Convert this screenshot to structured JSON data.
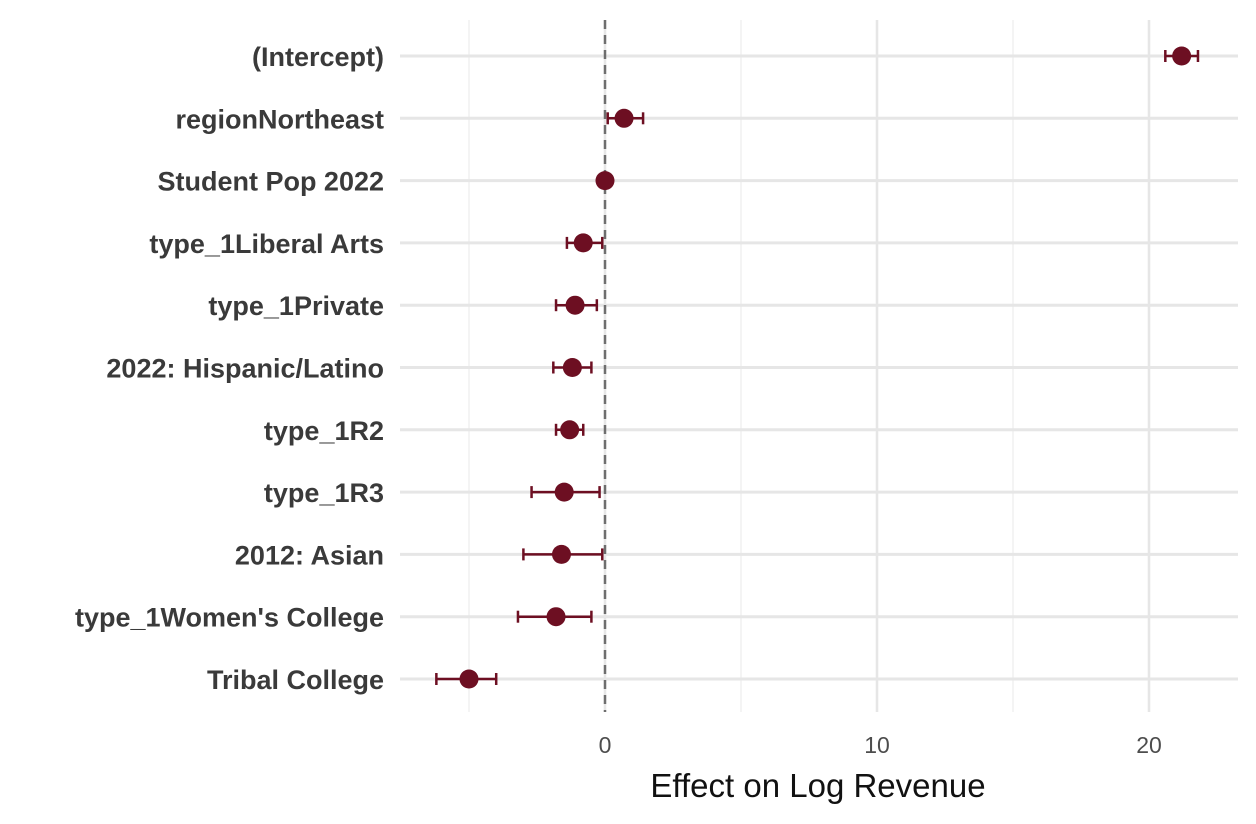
{
  "chart_data": {
    "type": "scatter",
    "subtype": "coefficient-plot",
    "title": "",
    "xlabel": "Effect on Log Revenue",
    "ylabel": "",
    "xlim": [
      -7.5,
      23.5
    ],
    "x_ticks": [
      0,
      10,
      20
    ],
    "reference_line": {
      "x": 0,
      "style": "dashed"
    },
    "grid": true,
    "legend": "none",
    "colors": {
      "point": "#6d0f22",
      "grid": "#e6e6e6",
      "reference": "#6e6e6e"
    },
    "categories": [
      "(Intercept)",
      "regionNortheast",
      "Student Pop 2022",
      "type_1Liberal Arts",
      "type_1Private",
      "2022: Hispanic/Latino",
      "type_1R2",
      "type_1R3",
      "2012: Asian",
      "type_1Women's College",
      "Tribal College"
    ],
    "series": [
      {
        "estimate": [
          21.2,
          0.7,
          0.0,
          -0.8,
          -1.1,
          -1.2,
          -1.3,
          -1.5,
          -1.6,
          -1.8,
          -5.0
        ],
        "conf_low": [
          20.6,
          0.1,
          -0.05,
          -1.4,
          -1.8,
          -1.9,
          -1.8,
          -2.7,
          -3.0,
          -3.2,
          -6.2
        ],
        "conf_high": [
          21.8,
          1.4,
          0.05,
          -0.1,
          -0.3,
          -0.5,
          -0.8,
          -0.2,
          -0.1,
          -0.5,
          -4.0
        ]
      }
    ]
  }
}
